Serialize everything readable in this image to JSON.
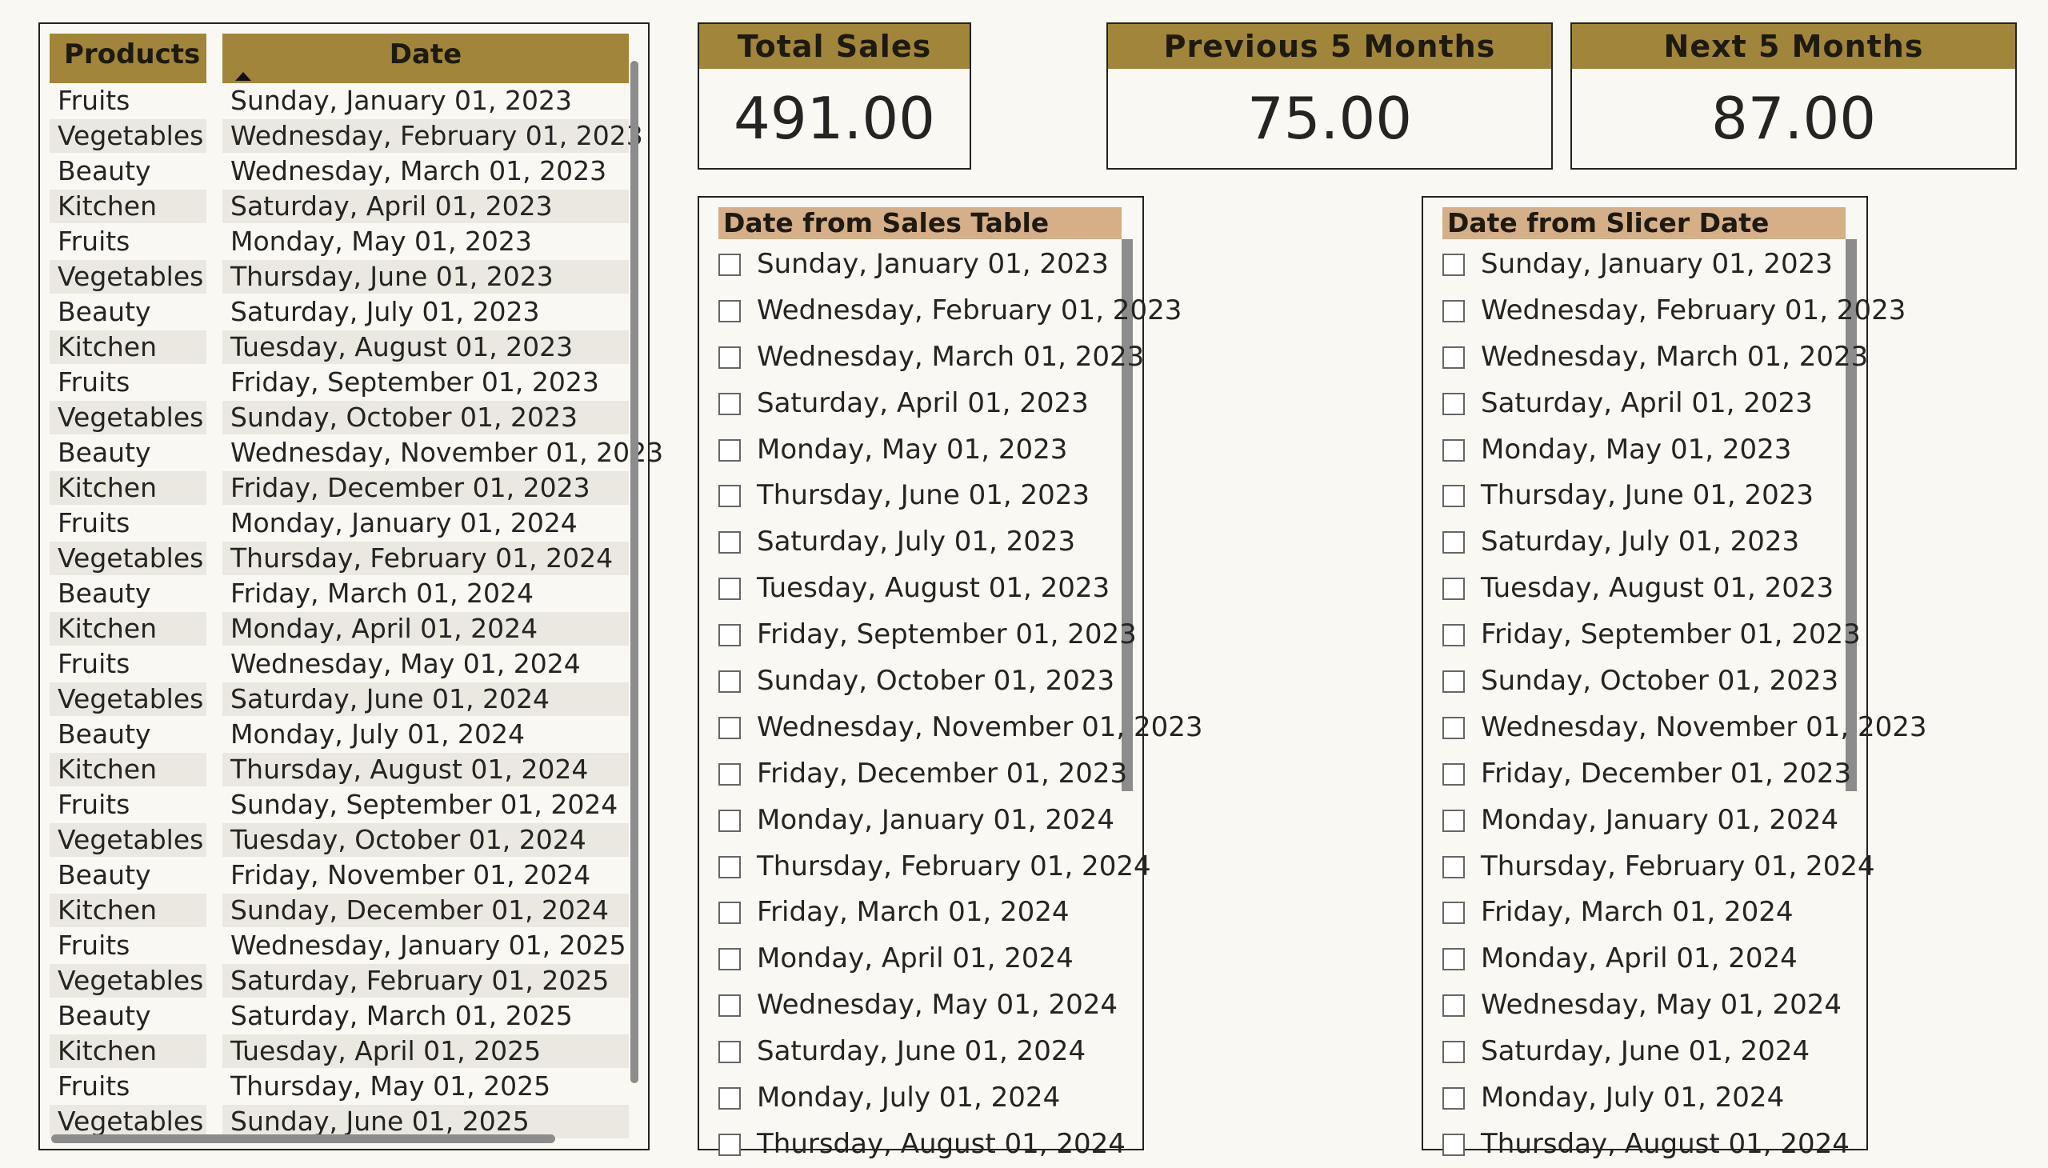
{
  "table": {
    "headers": {
      "products": "Products",
      "date": "Date"
    },
    "rows": [
      {
        "product": "Fruits",
        "date": "Sunday, January 01, 2023"
      },
      {
        "product": "Vegetables",
        "date": "Wednesday, February 01, 2023"
      },
      {
        "product": "Beauty",
        "date": "Wednesday, March 01, 2023"
      },
      {
        "product": "Kitchen",
        "date": "Saturday, April 01, 2023"
      },
      {
        "product": "Fruits",
        "date": "Monday, May 01, 2023"
      },
      {
        "product": "Vegetables",
        "date": "Thursday, June 01, 2023"
      },
      {
        "product": "Beauty",
        "date": "Saturday, July 01, 2023"
      },
      {
        "product": "Kitchen",
        "date": "Tuesday, August 01, 2023"
      },
      {
        "product": "Fruits",
        "date": "Friday, September 01, 2023"
      },
      {
        "product": "Vegetables",
        "date": "Sunday, October 01, 2023"
      },
      {
        "product": "Beauty",
        "date": "Wednesday, November 01, 2023"
      },
      {
        "product": "Kitchen",
        "date": "Friday, December 01, 2023"
      },
      {
        "product": "Fruits",
        "date": "Monday, January 01, 2024"
      },
      {
        "product": "Vegetables",
        "date": "Thursday, February 01, 2024"
      },
      {
        "product": "Beauty",
        "date": "Friday, March 01, 2024"
      },
      {
        "product": "Kitchen",
        "date": "Monday, April 01, 2024"
      },
      {
        "product": "Fruits",
        "date": "Wednesday, May 01, 2024"
      },
      {
        "product": "Vegetables",
        "date": "Saturday, June 01, 2024"
      },
      {
        "product": "Beauty",
        "date": "Monday, July 01, 2024"
      },
      {
        "product": "Kitchen",
        "date": "Thursday, August 01, 2024"
      },
      {
        "product": "Fruits",
        "date": "Sunday, September 01, 2024"
      },
      {
        "product": "Vegetables",
        "date": "Tuesday, October 01, 2024"
      },
      {
        "product": "Beauty",
        "date": "Friday, November 01, 2024"
      },
      {
        "product": "Kitchen",
        "date": "Sunday, December 01, 2024"
      },
      {
        "product": "Fruits",
        "date": "Wednesday, January 01, 2025"
      },
      {
        "product": "Vegetables",
        "date": "Saturday, February 01, 2025"
      },
      {
        "product": "Beauty",
        "date": "Saturday, March 01, 2025"
      },
      {
        "product": "Kitchen",
        "date": "Tuesday, April 01, 2025"
      },
      {
        "product": "Fruits",
        "date": "Thursday, May 01, 2025"
      },
      {
        "product": "Vegetables",
        "date": "Sunday, June 01, 2025"
      }
    ]
  },
  "cards": {
    "total_sales": {
      "title": "Total Sales",
      "value": "491.00"
    },
    "previous_5_months": {
      "title": "Previous 5 Months",
      "value": "75.00"
    },
    "next_5_months": {
      "title": "Next 5 Months",
      "value": "87.00"
    }
  },
  "slicers": {
    "sales_table": {
      "header": "Date from Sales Table",
      "items": [
        "Sunday, January 01, 2023",
        "Wednesday, February 01, 2023",
        "Wednesday, March 01, 2023",
        "Saturday, April 01, 2023",
        "Monday, May 01, 2023",
        "Thursday, June 01, 2023",
        "Saturday, July 01, 2023",
        "Tuesday, August 01, 2023",
        "Friday, September 01, 2023",
        "Sunday, October 01, 2023",
        "Wednesday, November 01, 2023",
        "Friday, December 01, 2023",
        "Monday, January 01, 2024",
        "Thursday, February 01, 2024",
        "Friday, March 01, 2024",
        "Monday, April 01, 2024",
        "Wednesday, May 01, 2024",
        "Saturday, June 01, 2024",
        "Monday, July 01, 2024",
        "Thursday, August 01, 2024"
      ]
    },
    "slicer_date": {
      "header": "Date from Slicer Date",
      "items": [
        "Sunday, January 01, 2023",
        "Wednesday, February 01, 2023",
        "Wednesday, March 01, 2023",
        "Saturday, April 01, 2023",
        "Monday, May 01, 2023",
        "Thursday, June 01, 2023",
        "Saturday, July 01, 2023",
        "Tuesday, August 01, 2023",
        "Friday, September 01, 2023",
        "Sunday, October 01, 2023",
        "Wednesday, November 01, 2023",
        "Friday, December 01, 2023",
        "Monday, January 01, 2024",
        "Thursday, February 01, 2024",
        "Friday, March 01, 2024",
        "Monday, April 01, 2024",
        "Wednesday, May 01, 2024",
        "Saturday, June 01, 2024",
        "Monday, July 01, 2024",
        "Thursday, August 01, 2024"
      ]
    }
  },
  "colors": {
    "header_gold": "#a0853a",
    "slicer_header_tan": "#d4af87",
    "row_alt": "#eae8e1",
    "background": "#f9f8f3"
  }
}
